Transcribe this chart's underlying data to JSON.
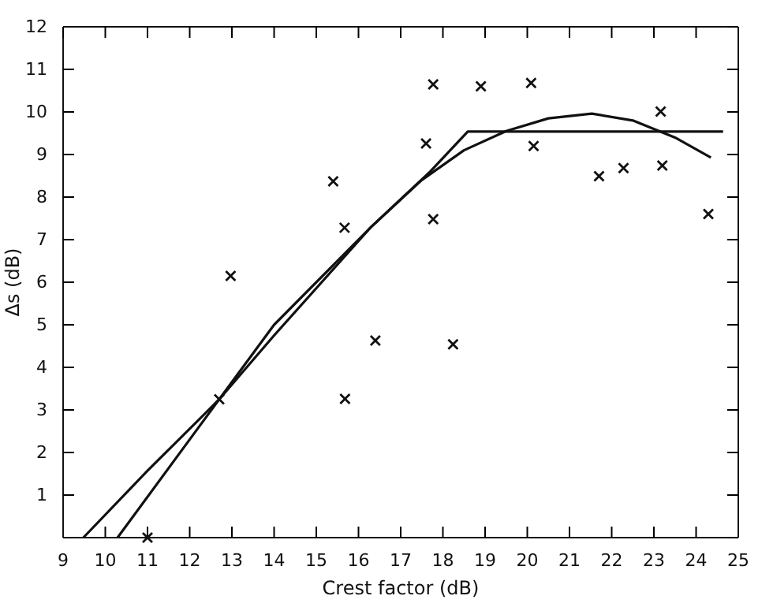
{
  "chart_data": {
    "type": "scatter",
    "xlabel": "Crest factor (dB)",
    "ylabel": "Δs (dB)",
    "xlim": [
      9,
      25
    ],
    "ylim": [
      0,
      12
    ],
    "xticks": [
      9,
      10,
      11,
      12,
      13,
      14,
      15,
      16,
      17,
      18,
      19,
      20,
      21,
      22,
      23,
      24,
      25
    ],
    "yticks": [
      {
        "value": 0,
        "label": null
      },
      1,
      2,
      3,
      4,
      5,
      6,
      7,
      8,
      9,
      10,
      11,
      12
    ],
    "grid": false,
    "series": [
      {
        "marker": "cross",
        "color": "#111111",
        "x": [
          11,
          12.7,
          12.97,
          15.4,
          15.67,
          15.68,
          16.4,
          17.77,
          18.9,
          20.09,
          17.6,
          17.77,
          18.24,
          20.15,
          21.7,
          22.28,
          23.2,
          23.16,
          24.29
        ],
        "values": [
          0,
          3.25,
          6.15,
          8.37,
          7.28,
          3.26,
          4.63,
          10.65,
          10.6,
          10.68,
          9.26,
          7.48,
          4.54,
          9.2,
          8.49,
          8.68,
          8.74,
          10.01,
          7.6
        ]
      },
      {
        "type": "line",
        "marker": "none",
        "line_style": "solid",
        "color": "#111111",
        "x": [
          10.29,
          12.7,
          14,
          16.3,
          17.7,
          18.59,
          24.64
        ],
        "values": [
          0,
          3.25,
          4.75,
          7.3,
          8.6,
          9.54,
          9.54
        ]
      },
      {
        "type": "line",
        "marker": "none",
        "line_style": "solid",
        "color": "#111111",
        "x": [
          9.48,
          11,
          12.7,
          14,
          16.3,
          17.5,
          18.5,
          19.5,
          20.5,
          21.53,
          22.5,
          23.5,
          24.35
        ],
        "values": [
          0,
          1.57,
          3.25,
          5.0,
          7.3,
          8.4,
          9.1,
          9.55,
          9.85,
          9.96,
          9.8,
          9.4,
          8.93
        ]
      }
    ]
  }
}
